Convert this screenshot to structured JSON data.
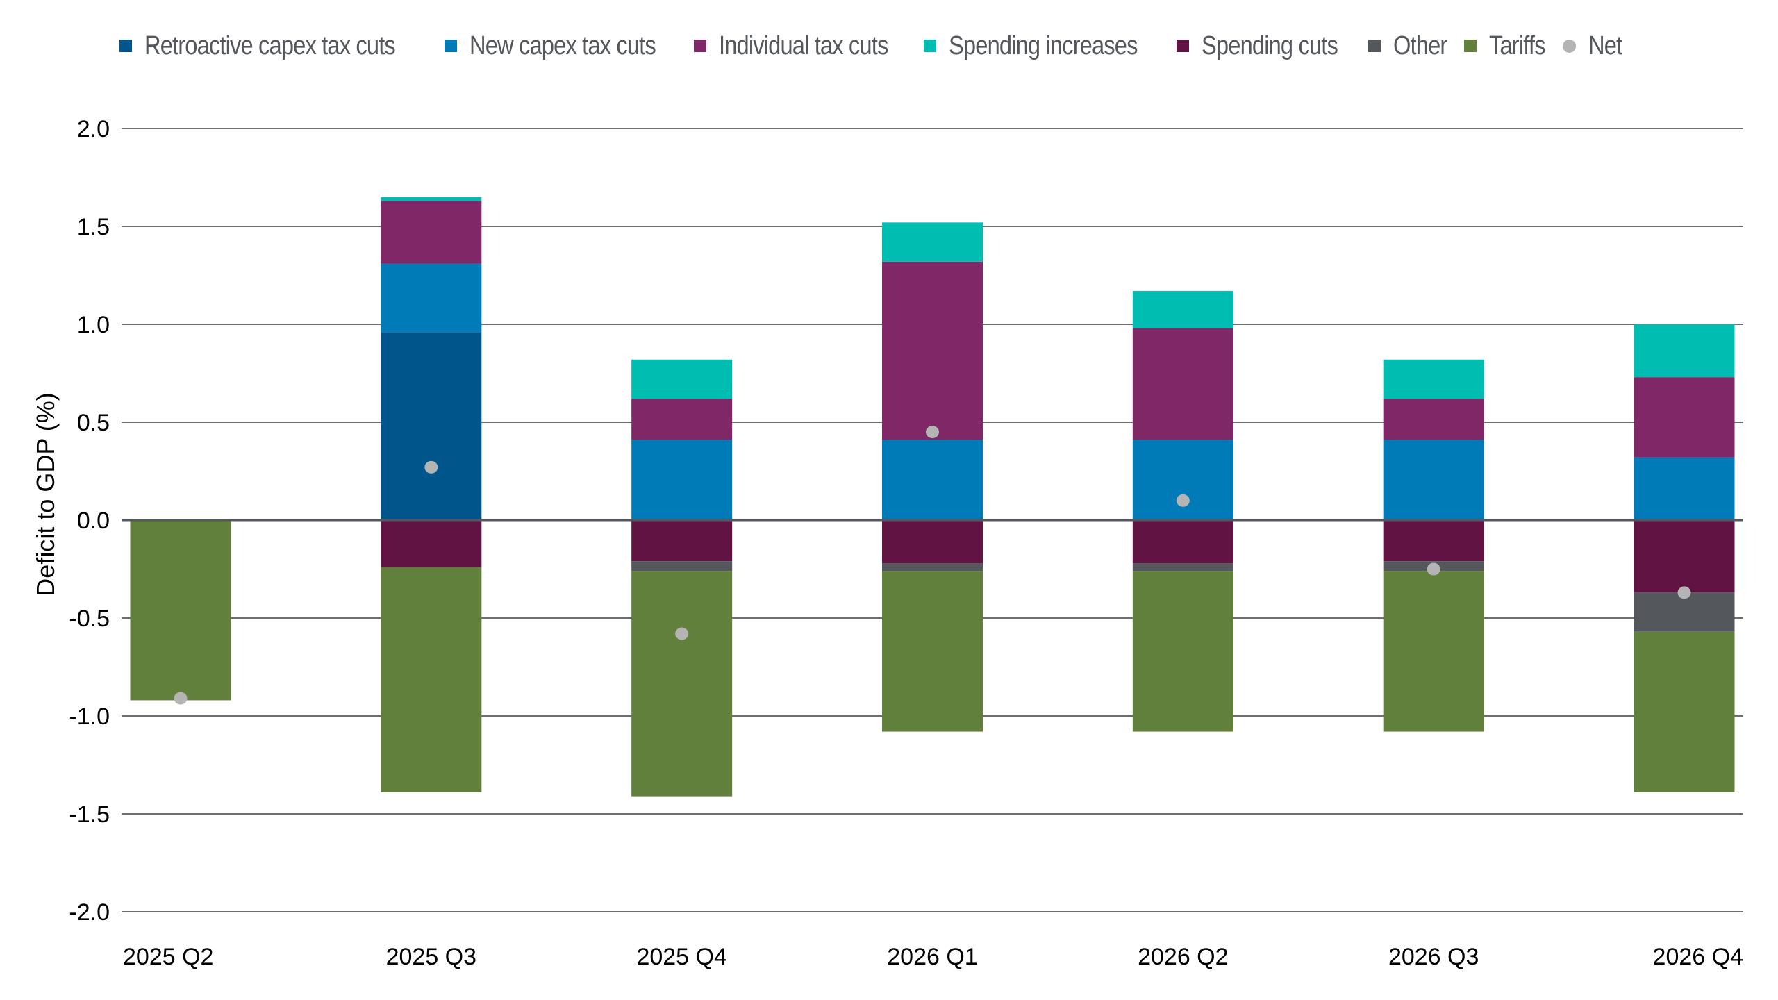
{
  "chart_data": {
    "type": "bar",
    "stacked": true,
    "title": "",
    "xlabel": "",
    "ylabel": "Deficit to GDP (%)",
    "ylim": [
      -2.0,
      2.0
    ],
    "yticks": [
      2.0,
      1.5,
      1.0,
      0.5,
      0.0,
      -0.5,
      -1.0,
      -1.5,
      -2.0
    ],
    "ytick_labels": [
      "2.0",
      "1.5",
      "1.0",
      "0.5",
      "0.0",
      "-0.5",
      "-1.0",
      "-1.5",
      "-2.0"
    ],
    "grid": true,
    "legend_position": "top",
    "categories": [
      "2025 Q2",
      "2025 Q3",
      "2025 Q4",
      "2026 Q1",
      "2026 Q2",
      "2026 Q3",
      "2026 Q4"
    ],
    "series": [
      {
        "name": "Retroactive capex tax cuts",
        "color": "#00558a",
        "values": [
          0,
          0.96,
          0,
          0,
          0,
          0,
          0
        ]
      },
      {
        "name": "New capex tax cuts",
        "color": "#007bb8",
        "values": [
          0,
          0.35,
          0.41,
          0.41,
          0.41,
          0.41,
          0.32
        ]
      },
      {
        "name": "Individual tax cuts",
        "color": "#7f2767",
        "values": [
          0,
          0.32,
          0.21,
          0.91,
          0.57,
          0.21,
          0.41
        ]
      },
      {
        "name": "Spending increases",
        "color": "#00bdb2",
        "values": [
          0,
          0.02,
          0.2,
          0.2,
          0.19,
          0.2,
          0.27
        ]
      },
      {
        "name": "Spending cuts",
        "color": "#611343",
        "values": [
          0,
          -0.24,
          -0.21,
          -0.22,
          -0.22,
          -0.21,
          -0.37
        ]
      },
      {
        "name": "Other",
        "color": "#54575c",
        "values": [
          0,
          0,
          -0.05,
          -0.04,
          -0.04,
          -0.05,
          -0.2
        ]
      },
      {
        "name": "Tariffs",
        "color": "#61803c",
        "values": [
          -0.92,
          -1.15,
          -1.15,
          -0.82,
          -0.82,
          -0.82,
          -0.82
        ]
      }
    ],
    "net": {
      "name": "Net",
      "color": "#b5b4b5",
      "values": [
        -0.91,
        0.27,
        -0.58,
        0.45,
        0.1,
        -0.25,
        -0.37
      ]
    }
  }
}
